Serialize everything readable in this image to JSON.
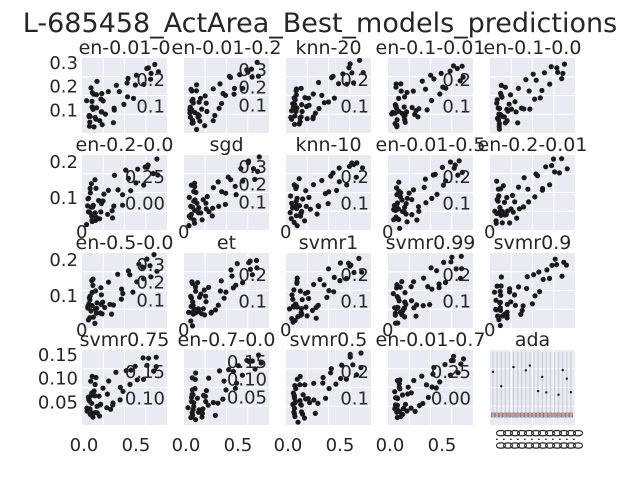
{
  "title": "L-685458_ActArea_Best_models_predictions",
  "colors": {
    "panel_bg": "#eaeaf2",
    "grid": "#ffffff",
    "point": "#1a1a1a",
    "text": "#262626",
    "box_median": "#d9534f"
  },
  "grid": true,
  "x_ticks": [
    "0",
    "0.0",
    "0.5"
  ],
  "subplots": [
    {
      "title": "en-0.01-0",
      "left_ticks": [
        "0.3",
        "0.2",
        "0.1"
      ],
      "inner_ticks": [
        "0.2",
        "0.1"
      ],
      "bottom_ticks": []
    },
    {
      "title": "en-0.01-0.2",
      "left_ticks": [],
      "inner_ticks": [
        "0.3",
        "0.2",
        "0.1"
      ],
      "bottom_ticks": []
    },
    {
      "title": "knn-20",
      "left_ticks": [],
      "inner_ticks": [
        "0.2",
        "0.1"
      ],
      "bottom_ticks": []
    },
    {
      "title": "en-0.1-0.01",
      "left_ticks": [],
      "inner_ticks": [
        "0.2",
        "0.1"
      ],
      "bottom_ticks": []
    },
    {
      "title": "en-0.1-0.0",
      "left_ticks": [],
      "inner_ticks": [],
      "bottom_ticks": []
    },
    {
      "title": "en-0.2-0.0",
      "left_ticks": [
        "0.2",
        "0.1"
      ],
      "inner_ticks": [
        "0.25",
        "0.00"
      ],
      "bottom_ticks": [
        "0"
      ]
    },
    {
      "title": "sgd",
      "left_ticks": [],
      "inner_ticks": [
        "0.3",
        "0.2",
        "0.1"
      ],
      "bottom_ticks": [
        "0"
      ]
    },
    {
      "title": "knn-10",
      "left_ticks": [],
      "inner_ticks": [
        "0.2",
        "0.1"
      ],
      "bottom_ticks": [
        "0"
      ]
    },
    {
      "title": "en-0.01-0.5",
      "left_ticks": [],
      "inner_ticks": [
        "0.2",
        "0.1"
      ],
      "bottom_ticks": [
        "0"
      ]
    },
    {
      "title": "en-0.2-0.01",
      "left_ticks": [],
      "inner_ticks": [],
      "bottom_ticks": [
        "0"
      ]
    },
    {
      "title": "en-0.5-0.0",
      "left_ticks": [
        "0.2",
        "0.1"
      ],
      "inner_ticks": [
        "0.3",
        "0.2",
        "0.1"
      ],
      "bottom_ticks": [
        "0"
      ]
    },
    {
      "title": "et",
      "left_ticks": [],
      "inner_ticks": [
        "0.2",
        "0.1"
      ],
      "bottom_ticks": [
        "0"
      ]
    },
    {
      "title": "svmr1",
      "left_ticks": [],
      "inner_ticks": [
        "0.2",
        "0.1"
      ],
      "bottom_ticks": [
        "0"
      ]
    },
    {
      "title": "svmr0.99",
      "left_ticks": [],
      "inner_ticks": [
        "0.2",
        "0.1"
      ],
      "bottom_ticks": [
        "0"
      ]
    },
    {
      "title": "svmr0.9",
      "left_ticks": [],
      "inner_ticks": [],
      "bottom_ticks": [
        "0"
      ]
    },
    {
      "title": "svmr0.75",
      "left_ticks": [
        "0.15",
        "0.10",
        "0.05"
      ],
      "inner_ticks": [
        "0.15",
        "0.10"
      ],
      "bottom_ticks": [
        "0.0",
        "0.5"
      ]
    },
    {
      "title": "en-0.7-0.0",
      "left_ticks": [],
      "inner_ticks": [
        "0.15",
        "0.10",
        "0.05"
      ],
      "bottom_ticks": [
        "0.0",
        "0.5"
      ]
    },
    {
      "title": "svmr0.5",
      "left_ticks": [],
      "inner_ticks": [
        "0.2",
        "0.1"
      ],
      "bottom_ticks": [
        "0.0",
        "0.5"
      ]
    },
    {
      "title": "en-0.01-0.7",
      "left_ticks": [],
      "inner_ticks": [
        "0.25",
        "0.00"
      ],
      "bottom_ticks": [
        "0.0",
        "0.5"
      ]
    },
    {
      "title": "ada",
      "left_ticks": [],
      "inner_ticks": [],
      "bottom_ticks": []
    }
  ],
  "chart_data": {
    "type": "scatter",
    "title": "L-685458_ActArea_Best_models_predictions",
    "layout": "4x5 grid of small scatter panels (last panel is a boxplot strip)",
    "grid": true,
    "panels": [
      "en-0.01-0",
      "en-0.01-0.2",
      "knn-20",
      "en-0.1-0.01",
      "en-0.1-0.0",
      "en-0.2-0.0",
      "sgd",
      "knn-10",
      "en-0.01-0.5",
      "en-0.2-0.01",
      "en-0.5-0.0",
      "et",
      "svmr1",
      "svmr0.99",
      "svmr0.9",
      "svmr0.75",
      "en-0.7-0.0",
      "svmr0.5",
      "en-0.01-0.7",
      "ada"
    ],
    "xlim": [
      -0.05,
      0.8
    ],
    "series": [
      {
        "x": [
          0.02,
          0.03,
          0.05,
          0.04,
          0.06,
          0.08,
          0.1,
          0.03,
          0.02,
          0.07,
          0.12,
          0.15,
          0.05,
          0.04,
          0.09,
          0.18,
          0.22,
          0.25,
          0.3,
          0.35,
          0.4,
          0.45,
          0.5,
          0.55,
          0.6,
          0.65,
          0.7,
          0.02,
          0.06,
          0.11,
          0.14,
          0.2,
          0.28,
          0.33,
          0.38,
          0.48,
          0.58,
          0.68,
          0.03,
          0.05,
          0.08,
          0.01,
          0.04,
          0.13,
          0.16,
          0.24,
          0.42,
          0.62
        ],
        "y": [
          0.1,
          0.12,
          0.08,
          0.14,
          0.11,
          0.09,
          0.13,
          0.07,
          0.15,
          0.18,
          0.1,
          0.12,
          0.16,
          0.2,
          0.09,
          0.14,
          0.19,
          0.11,
          0.22,
          0.13,
          0.24,
          0.17,
          0.26,
          0.21,
          0.28,
          0.23,
          0.25,
          0.06,
          0.05,
          0.08,
          0.07,
          0.1,
          0.12,
          0.18,
          0.16,
          0.2,
          0.27,
          0.29,
          0.13,
          0.19,
          0.21,
          0.09,
          0.11,
          0.15,
          0.17,
          0.08,
          0.23,
          0.26
        ]
      }
    ]
  }
}
